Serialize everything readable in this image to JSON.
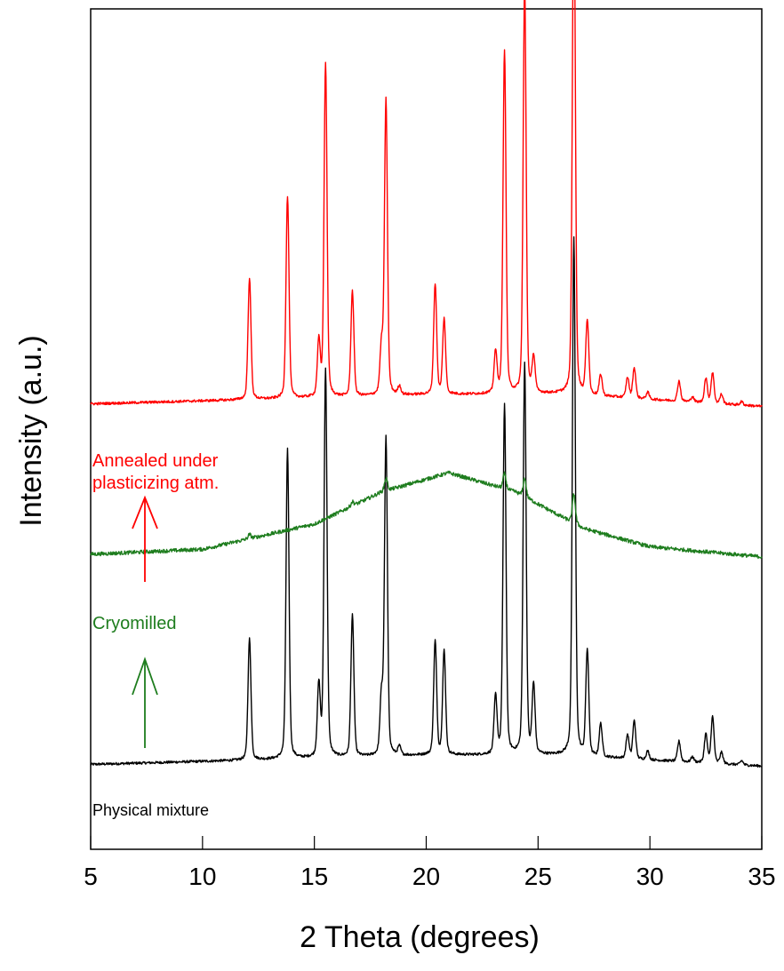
{
  "chart_data": {
    "type": "line",
    "xlabel": "2 Theta (degrees)",
    "ylabel": "Intensity (a.u.)",
    "xlim": [
      5,
      35
    ],
    "ylim": [
      0,
      100
    ],
    "x_ticks": [
      5,
      10,
      15,
      20,
      25,
      30,
      35
    ],
    "y_ticks_shown": false,
    "grid": false,
    "legend": "none",
    "series": [
      {
        "name": "Physical mixture",
        "color": "#000000",
        "baseline": [
          [
            5,
            10.1
          ],
          [
            12,
            10.6
          ],
          [
            20,
            11.2
          ],
          [
            26,
            11.2
          ],
          [
            35,
            9.9
          ]
        ],
        "peaks": [
          [
            12.1,
            14.4
          ],
          [
            13.8,
            36.8
          ],
          [
            15.2,
            8.4
          ],
          [
            15.5,
            46.3
          ],
          [
            16.7,
            16.8
          ],
          [
            18.0,
            6.7
          ],
          [
            18.2,
            37.7
          ],
          [
            18.8,
            1.0
          ],
          [
            20.4,
            13.5
          ],
          [
            20.8,
            12.3
          ],
          [
            23.1,
            6.8
          ],
          [
            23.5,
            41.6
          ],
          [
            24.4,
            46.6
          ],
          [
            24.8,
            8.1
          ],
          [
            26.6,
            61.7
          ],
          [
            27.2,
            12.5
          ],
          [
            27.8,
            3.9
          ],
          [
            29.0,
            2.8
          ],
          [
            29.3,
            4.5
          ],
          [
            29.9,
            1.0
          ],
          [
            31.3,
            2.4
          ],
          [
            31.9,
            0.6
          ],
          [
            32.5,
            3.4
          ],
          [
            32.8,
            5.5
          ],
          [
            33.2,
            1.3
          ],
          [
            34.1,
            0.5
          ]
        ]
      },
      {
        "name": "Cryomilled",
        "color": "#1e7d1e",
        "baseline": [
          [
            5,
            35.1
          ],
          [
            10,
            35.7
          ],
          [
            15,
            38.7
          ],
          [
            18,
            42.5
          ],
          [
            21,
            44.8
          ],
          [
            24,
            42.5
          ],
          [
            27,
            38.2
          ],
          [
            30,
            36.0
          ],
          [
            35,
            34.8
          ]
        ],
        "peaks": [
          [
            12.1,
            0.5
          ],
          [
            16.7,
            0.5
          ],
          [
            18.2,
            1.5
          ],
          [
            23.5,
            1.8
          ],
          [
            24.4,
            2.2
          ],
          [
            26.6,
            3.5
          ]
        ]
      },
      {
        "name": "Annealed under plasticizing atm.",
        "color": "#ff0000",
        "baseline": [
          [
            5,
            53.0
          ],
          [
            12,
            53.5
          ],
          [
            20,
            54.1
          ],
          [
            26,
            54.2
          ],
          [
            35,
            52.7
          ]
        ],
        "peaks": [
          [
            12.1,
            14.4
          ],
          [
            13.8,
            24.1
          ],
          [
            15.2,
            6.5
          ],
          [
            15.5,
            39.8
          ],
          [
            16.7,
            12.5
          ],
          [
            18.0,
            5.5
          ],
          [
            18.2,
            35.1
          ],
          [
            18.8,
            1.0
          ],
          [
            20.4,
            13.1
          ],
          [
            20.8,
            8.9
          ],
          [
            23.1,
            4.8
          ],
          [
            23.5,
            40.9
          ],
          [
            24.4,
            48.6
          ],
          [
            24.8,
            4.2
          ],
          [
            26.6,
            61.8
          ],
          [
            27.2,
            8.8
          ],
          [
            27.8,
            2.5
          ],
          [
            29.0,
            2.4
          ],
          [
            29.3,
            3.6
          ],
          [
            29.9,
            0.8
          ],
          [
            31.3,
            2.4
          ],
          [
            31.9,
            0.6
          ],
          [
            32.5,
            2.9
          ],
          [
            32.8,
            3.6
          ],
          [
            33.2,
            1.1
          ],
          [
            34.1,
            0.4
          ]
        ]
      }
    ],
    "annotations": [
      {
        "text_lines": [
          "Annealed under",
          "plasticizing atm."
        ],
        "color": "#ff0000"
      },
      {
        "text_lines": [
          "Cryomilled"
        ],
        "color": "#1e7d1e"
      },
      {
        "text_lines": [
          "Physical mixture"
        ],
        "color": "#000000"
      }
    ],
    "arrows": [
      {
        "from": "Cryomilled",
        "to": "Annealed under plasticizing atm.",
        "color": "#ff0000",
        "direction": "up"
      },
      {
        "from": "Physical mixture",
        "to": "Cryomilled",
        "color": "#1e7d1e",
        "direction": "up"
      }
    ]
  }
}
